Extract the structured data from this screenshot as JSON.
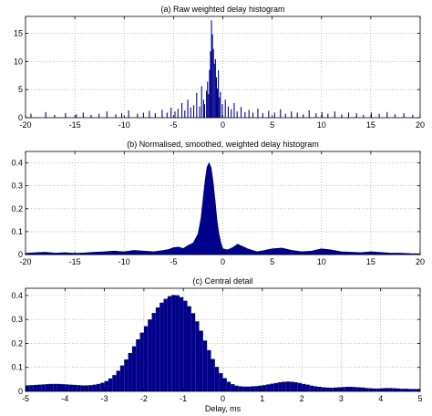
{
  "colors": {
    "bar": "#00008b",
    "grid": "#9a9a9a",
    "axis": "#000000"
  },
  "chart_data": [
    {
      "type": "bar",
      "title": "(a) Raw weighted delay histogram",
      "xlabel": "",
      "ylabel": "",
      "xlim": [
        -20,
        20
      ],
      "ylim": [
        0,
        18
      ],
      "xticks": [
        -20,
        -15,
        -10,
        -5,
        0,
        5,
        10,
        15,
        20
      ],
      "yticks": [
        0,
        5,
        10,
        15
      ],
      "grid": "dotted",
      "bar_width": 0.1,
      "x": [
        -19.5,
        -18.0,
        -17.1,
        -16.0,
        -14.9,
        -14.2,
        -13.4,
        -12.6,
        -11.8,
        -10.9,
        -10.3,
        -9.6,
        -8.7,
        -8.1,
        -7.5,
        -6.9,
        -6.2,
        -5.7,
        -5.3,
        -4.9,
        -4.6,
        -4.2,
        -3.9,
        -3.6,
        -3.3,
        -3.0,
        -2.7,
        -2.4,
        -2.2,
        -2.0,
        -1.9,
        -1.7,
        -1.6,
        -1.5,
        -1.4,
        -1.3,
        -1.2,
        -1.1,
        -1.0,
        -0.9,
        -0.8,
        -0.7,
        -0.6,
        -0.5,
        -0.4,
        -0.3,
        -0.1,
        0.2,
        0.5,
        0.8,
        1.1,
        1.4,
        1.8,
        2.2,
        2.6,
        3.0,
        3.5,
        4.0,
        4.6,
        5.2,
        5.8,
        6.3,
        6.9,
        7.5,
        8.1,
        8.7,
        9.4,
        10.0,
        10.6,
        11.3,
        12.0,
        12.7,
        13.5,
        14.2,
        15.0,
        15.8,
        16.6,
        17.4,
        18.3,
        19.2
      ],
      "y": [
        0.7,
        1.0,
        0.5,
        0.8,
        0.6,
        0.9,
        0.5,
        0.7,
        1.1,
        0.6,
        0.8,
        1.3,
        0.7,
        0.9,
        1.2,
        0.8,
        1.4,
        0.9,
        1.8,
        1.1,
        1.6,
        2.6,
        1.3,
        3.2,
        1.8,
        2.2,
        4.4,
        2.0,
        5.6,
        3.2,
        2.4,
        4.8,
        6.4,
        4.2,
        8.5,
        11.8,
        17.3,
        14.8,
        12.2,
        9.6,
        10.4,
        7.2,
        5.2,
        8.4,
        3.6,
        4.6,
        2.4,
        3.2,
        2.0,
        1.5,
        2.6,
        1.1,
        1.9,
        1.0,
        1.4,
        0.9,
        1.6,
        0.8,
        1.2,
        0.9,
        1.5,
        0.7,
        1.1,
        0.9,
        0.6,
        1.3,
        0.8,
        1.0,
        0.7,
        1.1,
        0.6,
        0.9,
        0.8,
        0.5,
        0.9,
        0.7,
        1.0,
        0.6,
        0.8,
        0.5
      ]
    },
    {
      "type": "area",
      "title": "(b) Normalised, smoothed, weighted delay histogram",
      "xlabel": "",
      "ylabel": "",
      "xlim": [
        -20,
        20
      ],
      "ylim": [
        0,
        0.45
      ],
      "xticks": [
        -20,
        -15,
        -10,
        -5,
        0,
        5,
        10,
        15,
        20
      ],
      "yticks": [
        0,
        0.1,
        0.2,
        0.3,
        0.4
      ],
      "ytick_labels": [
        "0",
        "0.1",
        "0.2",
        "0.3",
        "0.4"
      ],
      "grid": "dotted",
      "x": [
        -20,
        -19,
        -18,
        -17,
        -16,
        -15,
        -14,
        -13,
        -12,
        -11,
        -10,
        -9,
        -8,
        -7,
        -6,
        -5.5,
        -5,
        -4.5,
        -4,
        -3.5,
        -3,
        -2.5,
        -2.2,
        -2,
        -1.8,
        -1.6,
        -1.4,
        -1.2,
        -1,
        -0.8,
        -0.6,
        -0.4,
        -0.2,
        0,
        0.5,
        1,
        1.5,
        2,
        2.5,
        3,
        3.5,
        4,
        5,
        6,
        7,
        8,
        9,
        10,
        11,
        12,
        13,
        14,
        15,
        16,
        17,
        18,
        19,
        20
      ],
      "y": [
        0.005,
        0.008,
        0.01,
        0.006,
        0.008,
        0.005,
        0.007,
        0.01,
        0.012,
        0.015,
        0.012,
        0.018,
        0.015,
        0.012,
        0.018,
        0.022,
        0.03,
        0.032,
        0.026,
        0.04,
        0.05,
        0.09,
        0.16,
        0.24,
        0.32,
        0.38,
        0.4,
        0.38,
        0.32,
        0.24,
        0.15,
        0.09,
        0.05,
        0.025,
        0.02,
        0.03,
        0.045,
        0.035,
        0.025,
        0.018,
        0.012,
        0.016,
        0.025,
        0.028,
        0.018,
        0.012,
        0.015,
        0.025,
        0.02,
        0.012,
        0.01,
        0.008,
        0.012,
        0.009,
        0.006,
        0.006,
        0.004,
        0.003
      ]
    },
    {
      "type": "bar",
      "title": "(c) Central detail",
      "xlabel": "Delay, ms",
      "ylabel": "",
      "xlim": [
        -5,
        5
      ],
      "ylim": [
        0,
        0.43
      ],
      "xticks": [
        -5,
        -4,
        -3,
        -2,
        -1,
        0,
        1,
        2,
        3,
        4,
        5
      ],
      "yticks": [
        0,
        0.1,
        0.2,
        0.3,
        0.4
      ],
      "ytick_labels": [
        "0",
        "0.1",
        "0.2",
        "0.3",
        "0.4"
      ],
      "grid": "dotted",
      "bar_width": 0.1,
      "x": [
        -5.0,
        -4.9,
        -4.8,
        -4.7,
        -4.6,
        -4.5,
        -4.4,
        -4.3,
        -4.2,
        -4.1,
        -4.0,
        -3.9,
        -3.8,
        -3.7,
        -3.6,
        -3.5,
        -3.4,
        -3.3,
        -3.2,
        -3.1,
        -3.0,
        -2.9,
        -2.8,
        -2.7,
        -2.6,
        -2.5,
        -2.4,
        -2.3,
        -2.2,
        -2.1,
        -2.0,
        -1.9,
        -1.8,
        -1.7,
        -1.6,
        -1.5,
        -1.4,
        -1.3,
        -1.2,
        -1.1,
        -1.0,
        -0.9,
        -0.8,
        -0.7,
        -0.6,
        -0.5,
        -0.4,
        -0.3,
        -0.2,
        -0.1,
        0.0,
        0.1,
        0.2,
        0.3,
        0.4,
        0.5,
        0.6,
        0.7,
        0.8,
        0.9,
        1.0,
        1.1,
        1.2,
        1.3,
        1.4,
        1.5,
        1.6,
        1.7,
        1.8,
        1.9,
        2.0,
        2.1,
        2.2,
        2.3,
        2.4,
        2.5,
        2.6,
        2.7,
        2.8,
        2.9,
        3.0,
        3.1,
        3.2,
        3.3,
        3.4,
        3.5,
        3.6,
        3.7,
        3.8,
        3.9,
        4.0,
        4.1,
        4.2,
        4.3,
        4.4,
        4.5,
        4.6,
        4.7,
        4.8,
        4.9
      ],
      "y": [
        0.025,
        0.026,
        0.027,
        0.028,
        0.029,
        0.03,
        0.031,
        0.031,
        0.031,
        0.03,
        0.029,
        0.028,
        0.027,
        0.026,
        0.025,
        0.025,
        0.026,
        0.028,
        0.031,
        0.036,
        0.043,
        0.054,
        0.068,
        0.086,
        0.108,
        0.133,
        0.16,
        0.188,
        0.217,
        0.245,
        0.272,
        0.3,
        0.327,
        0.35,
        0.37,
        0.386,
        0.397,
        0.402,
        0.401,
        0.393,
        0.378,
        0.355,
        0.326,
        0.292,
        0.253,
        0.212,
        0.172,
        0.135,
        0.102,
        0.076,
        0.055,
        0.04,
        0.03,
        0.024,
        0.021,
        0.02,
        0.02,
        0.021,
        0.022,
        0.024,
        0.026,
        0.029,
        0.032,
        0.035,
        0.038,
        0.04,
        0.041,
        0.04,
        0.038,
        0.035,
        0.031,
        0.028,
        0.024,
        0.021,
        0.019,
        0.017,
        0.016,
        0.015,
        0.016,
        0.017,
        0.018,
        0.019,
        0.019,
        0.018,
        0.017,
        0.016,
        0.014,
        0.013,
        0.012,
        0.012,
        0.013,
        0.014,
        0.014,
        0.013,
        0.012,
        0.011,
        0.011,
        0.01,
        0.01,
        0.01
      ]
    }
  ]
}
